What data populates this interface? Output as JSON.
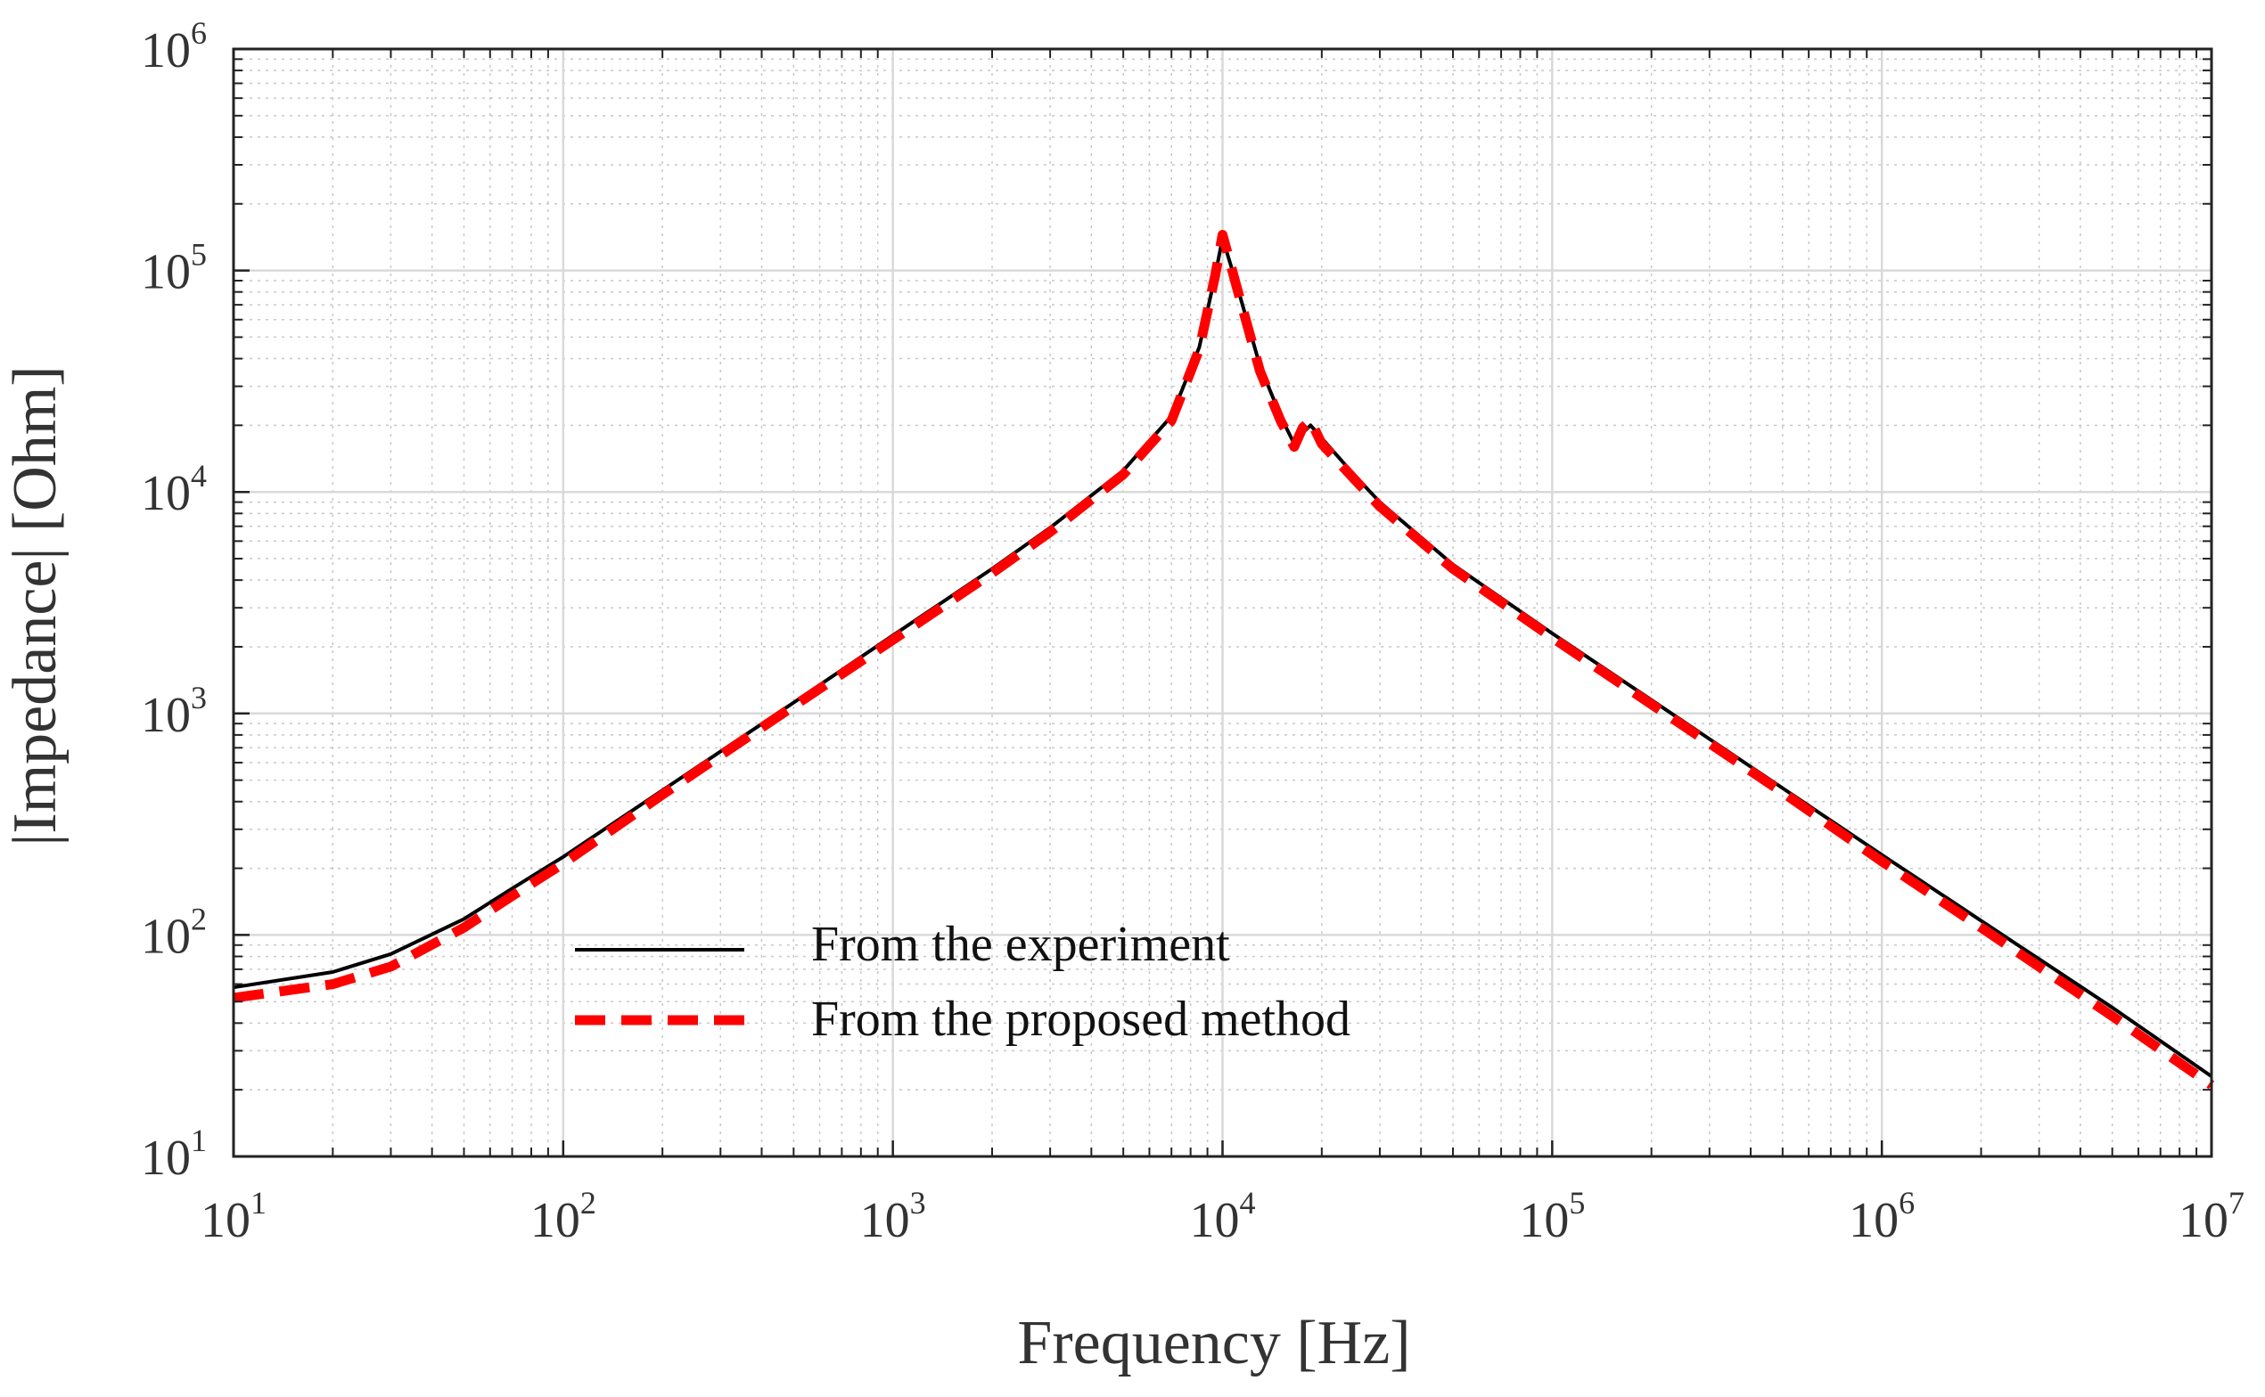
{
  "chart_data": {
    "type": "line",
    "title": "",
    "xlabel": "Frequency [Hz]",
    "ylabel": "|Impedance| [Ohm]",
    "xscale": "log",
    "yscale": "log",
    "xlim": [
      10,
      10000000
    ],
    "ylim": [
      10,
      1000000
    ],
    "grid": true,
    "legend_position": "lower-center",
    "x_ticks": [
      {
        "base": "10",
        "exp": "1",
        "value": 10
      },
      {
        "base": "10",
        "exp": "2",
        "value": 100
      },
      {
        "base": "10",
        "exp": "3",
        "value": 1000
      },
      {
        "base": "10",
        "exp": "4",
        "value": 10000
      },
      {
        "base": "10",
        "exp": "5",
        "value": 100000
      },
      {
        "base": "10",
        "exp": "6",
        "value": 1000000
      },
      {
        "base": "10",
        "exp": "7",
        "value": 10000000
      }
    ],
    "y_ticks": [
      {
        "base": "10",
        "exp": "1",
        "value": 10
      },
      {
        "base": "10",
        "exp": "2",
        "value": 100
      },
      {
        "base": "10",
        "exp": "3",
        "value": 1000
      },
      {
        "base": "10",
        "exp": "4",
        "value": 10000
      },
      {
        "base": "10",
        "exp": "5",
        "value": 100000
      },
      {
        "base": "10",
        "exp": "6",
        "value": 1000000
      }
    ],
    "series": [
      {
        "name": "From the experiment",
        "color": "#000000",
        "style": "solid",
        "points": [
          [
            10,
            58
          ],
          [
            20,
            68
          ],
          [
            30,
            82
          ],
          [
            50,
            118
          ],
          [
            70,
            162
          ],
          [
            100,
            225
          ],
          [
            200,
            450
          ],
          [
            500,
            1120
          ],
          [
            1000,
            2250
          ],
          [
            2000,
            4500
          ],
          [
            3000,
            6900
          ],
          [
            5000,
            12500
          ],
          [
            7000,
            22000
          ],
          [
            8500,
            45000
          ],
          [
            9500,
            95000
          ],
          [
            10000,
            140000
          ],
          [
            11000,
            88000
          ],
          [
            13000,
            37000
          ],
          [
            15000,
            22000
          ],
          [
            16500,
            16500
          ],
          [
            17500,
            18500
          ],
          [
            18500,
            20000
          ],
          [
            20000,
            17500
          ],
          [
            25000,
            12000
          ],
          [
            30000,
            9000
          ],
          [
            50000,
            4700
          ],
          [
            100000,
            2300
          ],
          [
            200000,
            1150
          ],
          [
            500000,
            460
          ],
          [
            1000000,
            230
          ],
          [
            2000000,
            116
          ],
          [
            5000000,
            47
          ],
          [
            10000000,
            23
          ]
        ]
      },
      {
        "name": "From the proposed method",
        "color": "#ff0000",
        "style": "dashed",
        "points": [
          [
            10,
            52
          ],
          [
            20,
            60
          ],
          [
            30,
            72
          ],
          [
            50,
            108
          ],
          [
            70,
            150
          ],
          [
            100,
            210
          ],
          [
            200,
            430
          ],
          [
            500,
            1080
          ],
          [
            1000,
            2150
          ],
          [
            2000,
            4300
          ],
          [
            3000,
            6600
          ],
          [
            5000,
            12000
          ],
          [
            7000,
            21000
          ],
          [
            8500,
            44000
          ],
          [
            9500,
            95000
          ],
          [
            10000,
            145000
          ],
          [
            11000,
            86000
          ],
          [
            13000,
            35000
          ],
          [
            15000,
            21000
          ],
          [
            16500,
            16000
          ],
          [
            17500,
            19500
          ],
          [
            18500,
            21000
          ],
          [
            20000,
            16500
          ],
          [
            25000,
            11500
          ],
          [
            30000,
            8600
          ],
          [
            50000,
            4500
          ],
          [
            100000,
            2200
          ],
          [
            200000,
            1100
          ],
          [
            500000,
            440
          ],
          [
            1000000,
            215
          ],
          [
            2000000,
            108
          ],
          [
            5000000,
            43
          ],
          [
            10000000,
            21
          ]
        ]
      }
    ]
  }
}
